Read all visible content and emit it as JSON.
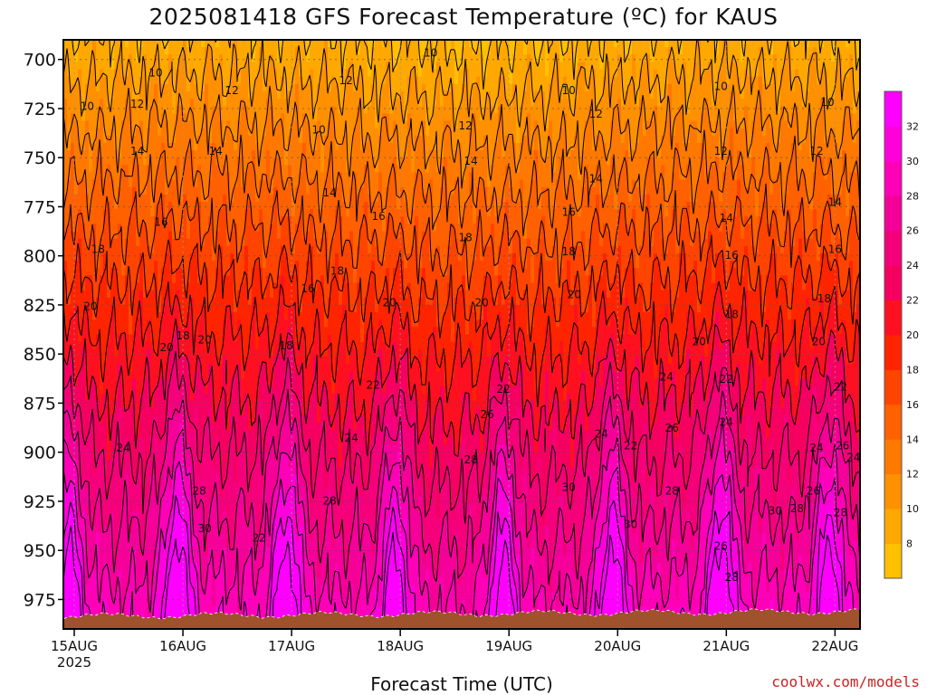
{
  "chart_data": {
    "type": "heatmap",
    "title": "2025081418 GFS Forecast Temperature (ºC) for KAUS",
    "xlabel": "Forecast Time (UTC)",
    "ylabel": "",
    "credit": "coolwx.com/models",
    "y_axis": {
      "ticks": [
        700,
        725,
        750,
        775,
        800,
        825,
        850,
        875,
        900,
        925,
        950,
        975
      ],
      "range": [
        690,
        990
      ],
      "inverted": true
    },
    "x_axis": {
      "ticks": [
        {
          "label": "15AUG",
          "sub": "2025",
          "day": 0
        },
        {
          "label": "16AUG",
          "sub": "",
          "day": 1
        },
        {
          "label": "17AUG",
          "sub": "",
          "day": 2
        },
        {
          "label": "18AUG",
          "sub": "",
          "day": 3
        },
        {
          "label": "19AUG",
          "sub": "",
          "day": 4
        },
        {
          "label": "20AUG",
          "sub": "",
          "day": 5
        },
        {
          "label": "21AUG",
          "sub": "",
          "day": 6
        },
        {
          "label": "22AUG",
          "sub": "",
          "day": 7
        }
      ],
      "range_days": [
        -0.1,
        7.23
      ]
    },
    "colorbar": {
      "levels": [
        6,
        8,
        10,
        12,
        14,
        16,
        18,
        20,
        22,
        24,
        26,
        28,
        30,
        32,
        34
      ],
      "labels": [
        "8",
        "10",
        "12",
        "14",
        "16",
        "18",
        "20",
        "22",
        "24",
        "26",
        "28",
        "30",
        "32"
      ],
      "colors": [
        "#FFC000",
        "#FFA800",
        "#FF9000",
        "#FF7800",
        "#FF6000",
        "#FF4400",
        "#FF2400",
        "#FF1020",
        "#F50060",
        "#F5007A",
        "#F50098",
        "#FF00B8",
        "#FF00DD",
        "#FF00FF"
      ]
    },
    "contour_interval": 2,
    "ground_color": "#A0522D",
    "grid": true,
    "contour_labels": [
      {
        "t": "10",
        "d": 0.75,
        "p": 707
      },
      {
        "t": "10",
        "d": 0.12,
        "p": 724
      },
      {
        "t": "12",
        "d": 0.58,
        "p": 723
      },
      {
        "t": "12",
        "d": 1.45,
        "p": 716
      },
      {
        "t": "14",
        "d": 0.58,
        "p": 747
      },
      {
        "t": "14",
        "d": 1.3,
        "p": 747
      },
      {
        "t": "16",
        "d": 0.8,
        "p": 783
      },
      {
        "t": "18",
        "d": 0.22,
        "p": 797
      },
      {
        "t": "20",
        "d": 0.15,
        "p": 826
      },
      {
        "t": "20",
        "d": 0.85,
        "p": 847
      },
      {
        "t": "18",
        "d": 1.0,
        "p": 841
      },
      {
        "t": "20",
        "d": 1.2,
        "p": 843
      },
      {
        "t": "24",
        "d": 0.45,
        "p": 898
      },
      {
        "t": "28",
        "d": 1.15,
        "p": 920
      },
      {
        "t": "30",
        "d": 1.2,
        "p": 939
      },
      {
        "t": "12",
        "d": 2.5,
        "p": 711
      },
      {
        "t": "10",
        "d": 2.25,
        "p": 736
      },
      {
        "t": "14",
        "d": 2.35,
        "p": 768
      },
      {
        "t": "16",
        "d": 2.15,
        "p": 817
      },
      {
        "t": "18",
        "d": 1.95,
        "p": 846
      },
      {
        "t": "18",
        "d": 2.42,
        "p": 808
      },
      {
        "t": "28",
        "d": 2.35,
        "p": 925
      },
      {
        "t": "22",
        "d": 1.7,
        "p": 944
      },
      {
        "t": "10",
        "d": 3.28,
        "p": 697
      },
      {
        "t": "12",
        "d": 3.6,
        "p": 734
      },
      {
        "t": "14",
        "d": 3.65,
        "p": 752
      },
      {
        "t": "16",
        "d": 2.8,
        "p": 780
      },
      {
        "t": "18",
        "d": 3.6,
        "p": 791
      },
      {
        "t": "20",
        "d": 2.9,
        "p": 824
      },
      {
        "t": "22",
        "d": 2.75,
        "p": 866
      },
      {
        "t": "24",
        "d": 2.55,
        "p": 893
      },
      {
        "t": "20",
        "d": 3.75,
        "p": 824
      },
      {
        "t": "26",
        "d": 3.8,
        "p": 881
      },
      {
        "t": "28",
        "d": 3.65,
        "p": 904
      },
      {
        "t": "22",
        "d": 3.95,
        "p": 868
      },
      {
        "t": "10",
        "d": 4.55,
        "p": 716
      },
      {
        "t": "12",
        "d": 4.8,
        "p": 728
      },
      {
        "t": "14",
        "d": 4.8,
        "p": 761
      },
      {
        "t": "16",
        "d": 4.55,
        "p": 778
      },
      {
        "t": "18",
        "d": 4.55,
        "p": 798
      },
      {
        "t": "20",
        "d": 4.6,
        "p": 820
      },
      {
        "t": "24",
        "d": 4.85,
        "p": 891
      },
      {
        "t": "30",
        "d": 4.55,
        "p": 918
      },
      {
        "t": "22",
        "d": 5.12,
        "p": 897
      },
      {
        "t": "30",
        "d": 5.12,
        "p": 937
      },
      {
        "t": "24",
        "d": 5.45,
        "p": 862
      },
      {
        "t": "26",
        "d": 5.5,
        "p": 888
      },
      {
        "t": "28",
        "d": 5.5,
        "p": 920
      },
      {
        "t": "10",
        "d": 5.95,
        "p": 714
      },
      {
        "t": "12",
        "d": 5.95,
        "p": 747
      },
      {
        "t": "14",
        "d": 6.0,
        "p": 781
      },
      {
        "t": "16",
        "d": 6.05,
        "p": 800
      },
      {
        "t": "18",
        "d": 6.05,
        "p": 830
      },
      {
        "t": "20",
        "d": 5.75,
        "p": 844
      },
      {
        "t": "22",
        "d": 6.0,
        "p": 863
      },
      {
        "t": "24",
        "d": 6.0,
        "p": 885
      },
      {
        "t": "26",
        "d": 5.95,
        "p": 948
      },
      {
        "t": "28",
        "d": 6.05,
        "p": 964
      },
      {
        "t": "30",
        "d": 6.45,
        "p": 930
      },
      {
        "t": "28",
        "d": 6.65,
        "p": 929
      },
      {
        "t": "26",
        "d": 6.8,
        "p": 920
      },
      {
        "t": "10",
        "d": 6.93,
        "p": 722
      },
      {
        "t": "12",
        "d": 6.83,
        "p": 747
      },
      {
        "t": "14",
        "d": 7.0,
        "p": 773
      },
      {
        "t": "16",
        "d": 7.0,
        "p": 797
      },
      {
        "t": "18",
        "d": 6.9,
        "p": 822
      },
      {
        "t": "20",
        "d": 6.85,
        "p": 844
      },
      {
        "t": "22",
        "d": 7.05,
        "p": 867
      },
      {
        "t": "24",
        "d": 6.83,
        "p": 898
      },
      {
        "t": "26",
        "d": 7.07,
        "p": 897
      },
      {
        "t": "24",
        "d": 7.17,
        "p": 903
      },
      {
        "t": "28",
        "d": 7.05,
        "p": 931
      }
    ]
  }
}
